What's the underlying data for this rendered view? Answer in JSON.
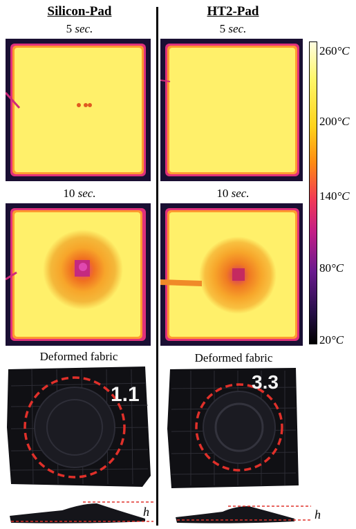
{
  "columns": {
    "left": {
      "title": "Silicon-Pad",
      "cap_5_num": "5",
      "cap_5_unit": "sec.",
      "cap_10_num": "10",
      "cap_10_unit": "sec.",
      "deformed_label": "Deformed fabric",
      "sample_mark": "1.1"
    },
    "right": {
      "title": "HT2-Pad",
      "cap_5_num": "5",
      "cap_5_unit": "sec.",
      "cap_10_num": "10",
      "cap_10_unit": "sec.",
      "deformed_label": "Deformed fabric",
      "sample_mark": "3.3"
    }
  },
  "colorbar": {
    "labels": [
      {
        "num": "260",
        "unit": "°C"
      },
      {
        "num": "200",
        "unit": "°C"
      },
      {
        "num": "140",
        "unit": "°C"
      },
      {
        "num": "80",
        "unit": "°C"
      },
      {
        "num": "20",
        "unit": "°C"
      }
    ],
    "colors": [
      "#fffde0",
      "#fff76a",
      "#ffd21a",
      "#ff8a12",
      "#f23a55",
      "#c21d86",
      "#6a1a8e",
      "#240e45",
      "#000000"
    ]
  },
  "height_label": "h",
  "colors": {
    "hot_yellow": "#ffe94a",
    "warm_orange": "#f0a020",
    "cool_purple": "#5a1c7a",
    "dark_bg": "#1a0f33",
    "dashed_circle": "#e0302a",
    "fabric": "#101014"
  }
}
